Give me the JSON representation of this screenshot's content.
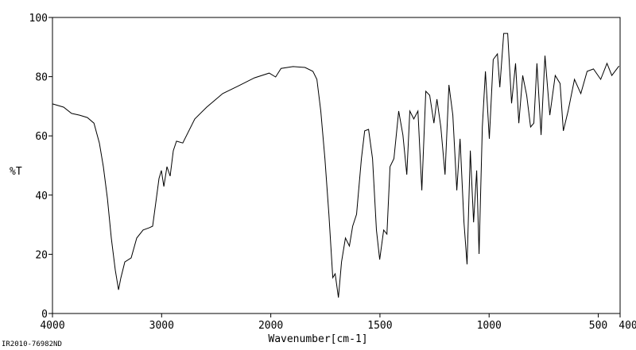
{
  "chart_data": {
    "type": "line",
    "x_label": "Wavenumber[cm-1]",
    "y_label": "%T",
    "footer": "IR2010-76982ND",
    "xlim": [
      4000,
      400
    ],
    "ylim": [
      0,
      100
    ],
    "x_break": 2000,
    "x_break_ratio": 2,
    "xticks": [
      4000,
      3000,
      2000,
      1500,
      1000,
      500,
      400
    ],
    "yticks": [
      0,
      20,
      40,
      60,
      80,
      100
    ],
    "grid": false,
    "series": [
      {
        "name": "%T",
        "color": "#000000",
        "x": [
          4000,
          3898,
          3825,
          3752,
          3680,
          3620,
          3570,
          3534,
          3497,
          3461,
          3425,
          3395,
          3374,
          3337,
          3279,
          3228,
          3170,
          3111,
          3082,
          3053,
          3024,
          3002,
          2980,
          2951,
          2922,
          2893,
          2864,
          2806,
          2696,
          2587,
          2441,
          2296,
          2150,
          2015,
          1978,
          1953,
          1898,
          1843,
          1807,
          1789,
          1771,
          1752,
          1734,
          1716,
          1705,
          1690,
          1676,
          1658,
          1640,
          1625,
          1607,
          1585,
          1570,
          1552,
          1534,
          1516,
          1501,
          1483,
          1468,
          1454,
          1436,
          1414,
          1395,
          1377,
          1363,
          1345,
          1326,
          1308,
          1290,
          1272,
          1253,
          1239,
          1221,
          1202,
          1184,
          1166,
          1148,
          1133,
          1115,
          1101,
          1086,
          1071,
          1057,
          1046,
          1031,
          1017,
          999,
          981,
          962,
          951,
          933,
          915,
          897,
          879,
          864,
          846,
          828,
          810,
          795,
          781,
          762,
          744,
          722,
          697,
          675,
          660,
          638,
          609,
          580,
          551,
          522,
          489,
          460,
          438,
          405
        ],
        "values": [
          70.8,
          69.7,
          67.6,
          67,
          66.2,
          64.3,
          57.6,
          49.6,
          38.9,
          25.5,
          14.7,
          8,
          12,
          17.4,
          18.8,
          25.5,
          28.2,
          29,
          29.5,
          37.5,
          45.6,
          48.3,
          42.9,
          49.6,
          46.4,
          55,
          58.2,
          57.6,
          65.7,
          69.7,
          74.3,
          76.9,
          79.6,
          81.2,
          79.9,
          82.8,
          83.4,
          83.1,
          81.8,
          79.1,
          68.4,
          52.3,
          33.5,
          12.1,
          13.4,
          5.4,
          17.4,
          25.5,
          22.8,
          29.5,
          33.5,
          52.3,
          61.7,
          62.2,
          52.3,
          28.2,
          18.2,
          28.2,
          26.8,
          49.6,
          52.3,
          68.4,
          60.3,
          46.9,
          68.4,
          65.7,
          68.4,
          41.6,
          75.1,
          73.7,
          64.3,
          72.4,
          63,
          46.9,
          77.2,
          67,
          41.6,
          59,
          30.8,
          16.6,
          55,
          30.8,
          48.3,
          20.1,
          63,
          81.8,
          59,
          85.8,
          87.7,
          76.4,
          94.6,
          94.6,
          71,
          84.5,
          64.3,
          80.4,
          73.7,
          63,
          64.3,
          84.5,
          60.3,
          87.1,
          67,
          80.4,
          77.7,
          61.7,
          68.4,
          79.1,
          74.3,
          81.8,
          82.6,
          79.1,
          84.5,
          80.4,
          83.6
        ]
      }
    ]
  }
}
